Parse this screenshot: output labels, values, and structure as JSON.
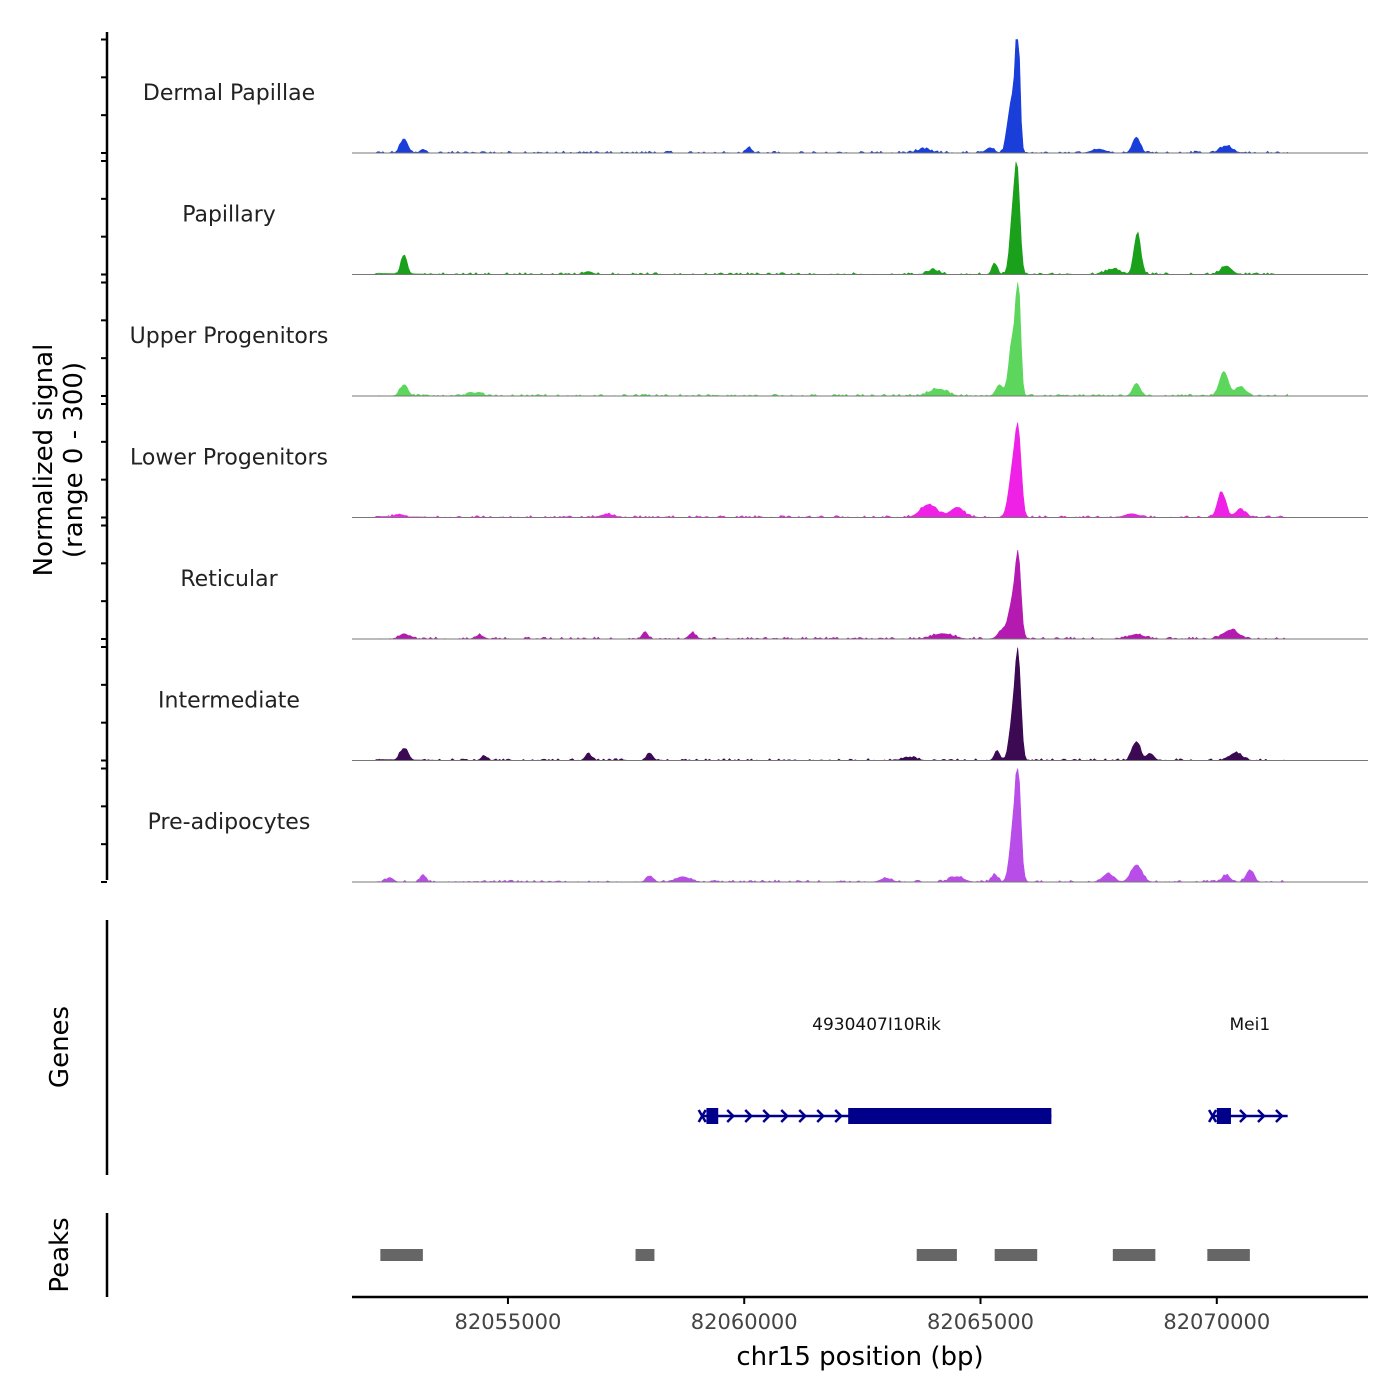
{
  "chart_data": {
    "type": "area",
    "title": "",
    "ylabel_line1": "Normalized signal",
    "ylabel_line2": "(range 0 - 300)",
    "xlabel": "chr15 position (bp)",
    "xlim": [
      82051700,
      82073200
    ],
    "ylim": [
      0,
      300
    ],
    "x_ticks": [
      82055000,
      82060000,
      82065000,
      82070000
    ],
    "x_tick_labels": [
      "82055000",
      "82060000",
      "82065000",
      "82070000"
    ],
    "tracks": [
      {
        "name": "Dermal Papillae",
        "color": "#1a3ed9",
        "peaks": [
          {
            "x": 82052800,
            "v": 38,
            "w": 110
          },
          {
            "x": 82053200,
            "v": 10,
            "w": 80
          },
          {
            "x": 82060100,
            "v": 16,
            "w": 70
          },
          {
            "x": 82063800,
            "v": 10,
            "w": 200
          },
          {
            "x": 82065200,
            "v": 14,
            "w": 120
          },
          {
            "x": 82065580,
            "v": 40,
            "w": 80
          },
          {
            "x": 82065790,
            "v": 300,
            "w": 60
          },
          {
            "x": 82065700,
            "v": 150,
            "w": 110
          },
          {
            "x": 82068300,
            "v": 42,
            "w": 110
          },
          {
            "x": 82067500,
            "v": 10,
            "w": 200
          },
          {
            "x": 82070200,
            "v": 18,
            "w": 180
          }
        ]
      },
      {
        "name": "Papillary",
        "color": "#1aa01a",
        "peaks": [
          {
            "x": 82052800,
            "v": 52,
            "w": 90
          },
          {
            "x": 82056700,
            "v": 8,
            "w": 120
          },
          {
            "x": 82064000,
            "v": 12,
            "w": 160
          },
          {
            "x": 82065300,
            "v": 28,
            "w": 80
          },
          {
            "x": 82065780,
            "v": 250,
            "w": 80
          },
          {
            "x": 82065680,
            "v": 140,
            "w": 90
          },
          {
            "x": 82068320,
            "v": 110,
            "w": 100
          },
          {
            "x": 82067800,
            "v": 14,
            "w": 200
          },
          {
            "x": 82070200,
            "v": 22,
            "w": 160
          }
        ]
      },
      {
        "name": "Upper Progenitors",
        "color": "#5cd65c",
        "peaks": [
          {
            "x": 82052800,
            "v": 30,
            "w": 110
          },
          {
            "x": 82054300,
            "v": 8,
            "w": 200
          },
          {
            "x": 82064100,
            "v": 18,
            "w": 260
          },
          {
            "x": 82065400,
            "v": 30,
            "w": 100
          },
          {
            "x": 82065800,
            "v": 270,
            "w": 70
          },
          {
            "x": 82065680,
            "v": 150,
            "w": 110
          },
          {
            "x": 82068300,
            "v": 34,
            "w": 110
          },
          {
            "x": 82070150,
            "v": 65,
            "w": 130
          },
          {
            "x": 82070500,
            "v": 25,
            "w": 150
          }
        ]
      },
      {
        "name": "Lower Progenitors",
        "color": "#f021e6",
        "peaks": [
          {
            "x": 82052700,
            "v": 8,
            "w": 160
          },
          {
            "x": 82057100,
            "v": 8,
            "w": 200
          },
          {
            "x": 82063900,
            "v": 34,
            "w": 240
          },
          {
            "x": 82064500,
            "v": 26,
            "w": 200
          },
          {
            "x": 82065800,
            "v": 200,
            "w": 90
          },
          {
            "x": 82065680,
            "v": 120,
            "w": 120
          },
          {
            "x": 82068200,
            "v": 10,
            "w": 200
          },
          {
            "x": 82070100,
            "v": 68,
            "w": 120
          },
          {
            "x": 82070500,
            "v": 20,
            "w": 160
          }
        ]
      },
      {
        "name": "Reticular",
        "color": "#b51ab0",
        "peaks": [
          {
            "x": 82052800,
            "v": 14,
            "w": 130
          },
          {
            "x": 82054400,
            "v": 10,
            "w": 120
          },
          {
            "x": 82057900,
            "v": 20,
            "w": 80
          },
          {
            "x": 82058900,
            "v": 16,
            "w": 100
          },
          {
            "x": 82064200,
            "v": 14,
            "w": 300
          },
          {
            "x": 82065450,
            "v": 22,
            "w": 120
          },
          {
            "x": 82065800,
            "v": 195,
            "w": 80
          },
          {
            "x": 82065680,
            "v": 100,
            "w": 120
          },
          {
            "x": 82068300,
            "v": 12,
            "w": 220
          },
          {
            "x": 82070300,
            "v": 24,
            "w": 220
          }
        ]
      },
      {
        "name": "Intermediate",
        "color": "#3b0a52",
        "peaks": [
          {
            "x": 82052800,
            "v": 32,
            "w": 120
          },
          {
            "x": 82054500,
            "v": 12,
            "w": 90
          },
          {
            "x": 82056700,
            "v": 18,
            "w": 90
          },
          {
            "x": 82058000,
            "v": 20,
            "w": 90
          },
          {
            "x": 82063500,
            "v": 8,
            "w": 200
          },
          {
            "x": 82065350,
            "v": 26,
            "w": 80
          },
          {
            "x": 82065800,
            "v": 235,
            "w": 80
          },
          {
            "x": 82065700,
            "v": 130,
            "w": 110
          },
          {
            "x": 82068300,
            "v": 50,
            "w": 120
          },
          {
            "x": 82068600,
            "v": 18,
            "w": 100
          },
          {
            "x": 82070400,
            "v": 20,
            "w": 180
          }
        ]
      },
      {
        "name": "Pre-adipocytes",
        "color": "#b84de8",
        "peaks": [
          {
            "x": 82052500,
            "v": 12,
            "w": 100
          },
          {
            "x": 82053200,
            "v": 20,
            "w": 80
          },
          {
            "x": 82058000,
            "v": 16,
            "w": 100
          },
          {
            "x": 82058700,
            "v": 14,
            "w": 200
          },
          {
            "x": 82063000,
            "v": 10,
            "w": 160
          },
          {
            "x": 82064500,
            "v": 14,
            "w": 200
          },
          {
            "x": 82065300,
            "v": 20,
            "w": 90
          },
          {
            "x": 82065800,
            "v": 250,
            "w": 80
          },
          {
            "x": 82065700,
            "v": 140,
            "w": 110
          },
          {
            "x": 82068300,
            "v": 45,
            "w": 160
          },
          {
            "x": 82067700,
            "v": 22,
            "w": 160
          },
          {
            "x": 82070700,
            "v": 32,
            "w": 110
          },
          {
            "x": 82070200,
            "v": 18,
            "w": 120
          }
        ]
      }
    ],
    "genes_label": "Genes",
    "genes_color": "#00008b",
    "genes": [
      {
        "name": "4930407I10Rik",
        "start": 82059100,
        "end": 82066500,
        "exons": [
          [
            82059200,
            82059450
          ],
          [
            82062200,
            82066500
          ]
        ],
        "arrow_range": [
          82059450,
          82062200
        ]
      },
      {
        "name": "Mei1",
        "start": 82069900,
        "end": 82071500,
        "exons": [
          [
            82070000,
            82070300
          ]
        ],
        "arrow_range": [
          82070300,
          82071500
        ]
      }
    ],
    "peaks_label": "Peaks",
    "peaks_color": "#666666",
    "peak_regions": [
      [
        82052300,
        82053200
      ],
      [
        82057700,
        82058100
      ],
      [
        82063650,
        82064500
      ],
      [
        82065300,
        82066200
      ],
      [
        82067800,
        82068700
      ],
      [
        82069800,
        82070700
      ]
    ]
  }
}
